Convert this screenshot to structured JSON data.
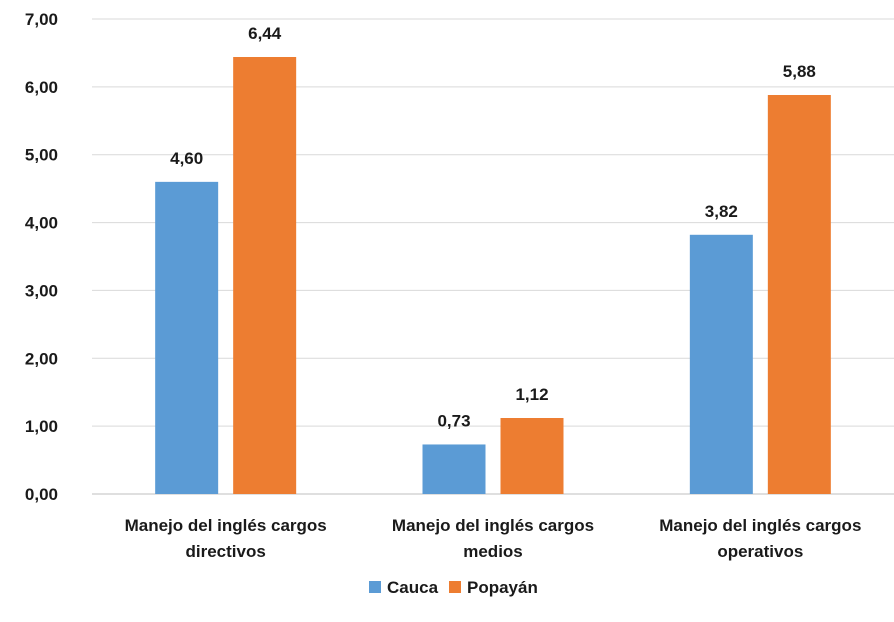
{
  "chart_data": {
    "type": "bar",
    "title": "",
    "xlabel": "",
    "ylabel": "",
    "ylim": [
      0,
      7
    ],
    "yticks": [
      "0,00",
      "1,00",
      "2,00",
      "3,00",
      "4,00",
      "5,00",
      "6,00",
      "7,00"
    ],
    "categories": [
      [
        "Manejo del inglés cargos",
        "directivos"
      ],
      [
        "Manejo del inglés cargos",
        "medios"
      ],
      [
        "Manejo del inglés cargos",
        "operativos"
      ]
    ],
    "series": [
      {
        "name": "Cauca",
        "color": "#5B9BD5",
        "values": [
          4.6,
          0.73,
          3.82
        ],
        "labels": [
          "4,60",
          "0,73",
          "3,82"
        ]
      },
      {
        "name": "Popayán",
        "color": "#ED7D31",
        "values": [
          6.44,
          1.12,
          5.88
        ],
        "labels": [
          "6,44",
          "1,12",
          "5,88"
        ]
      }
    ],
    "grid": true,
    "legend": "bottom-center"
  }
}
